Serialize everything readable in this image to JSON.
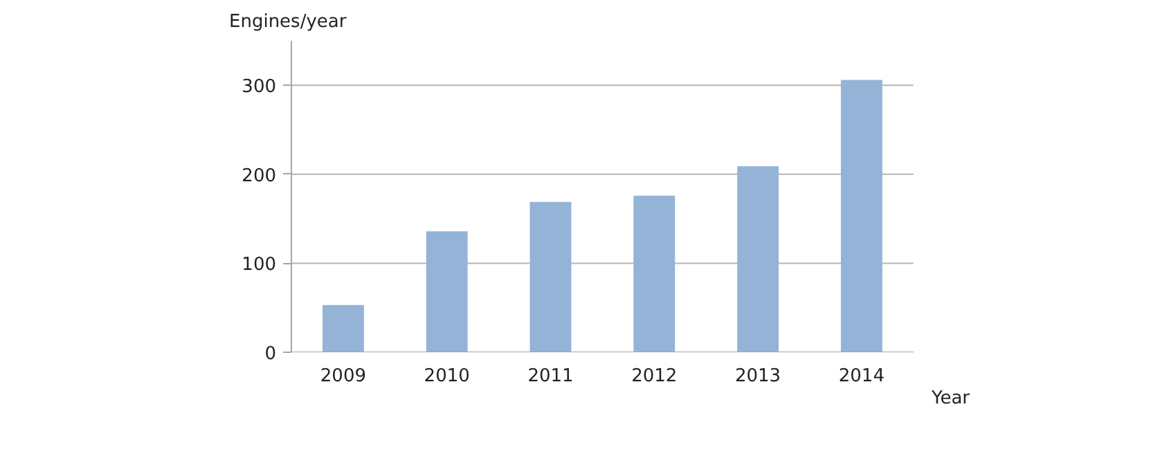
{
  "chart_data": {
    "type": "bar",
    "xlabel": "Year",
    "ylabel": "Engines/year",
    "categories": [
      "2009",
      "2010",
      "2011",
      "2012",
      "2013",
      "2014"
    ],
    "values": [
      53,
      136,
      169,
      176,
      209,
      306
    ],
    "color": "#95b3d7",
    "ylim": [
      0,
      350
    ],
    "yticks": [
      0,
      100,
      200,
      300
    ],
    "grid": "y"
  }
}
